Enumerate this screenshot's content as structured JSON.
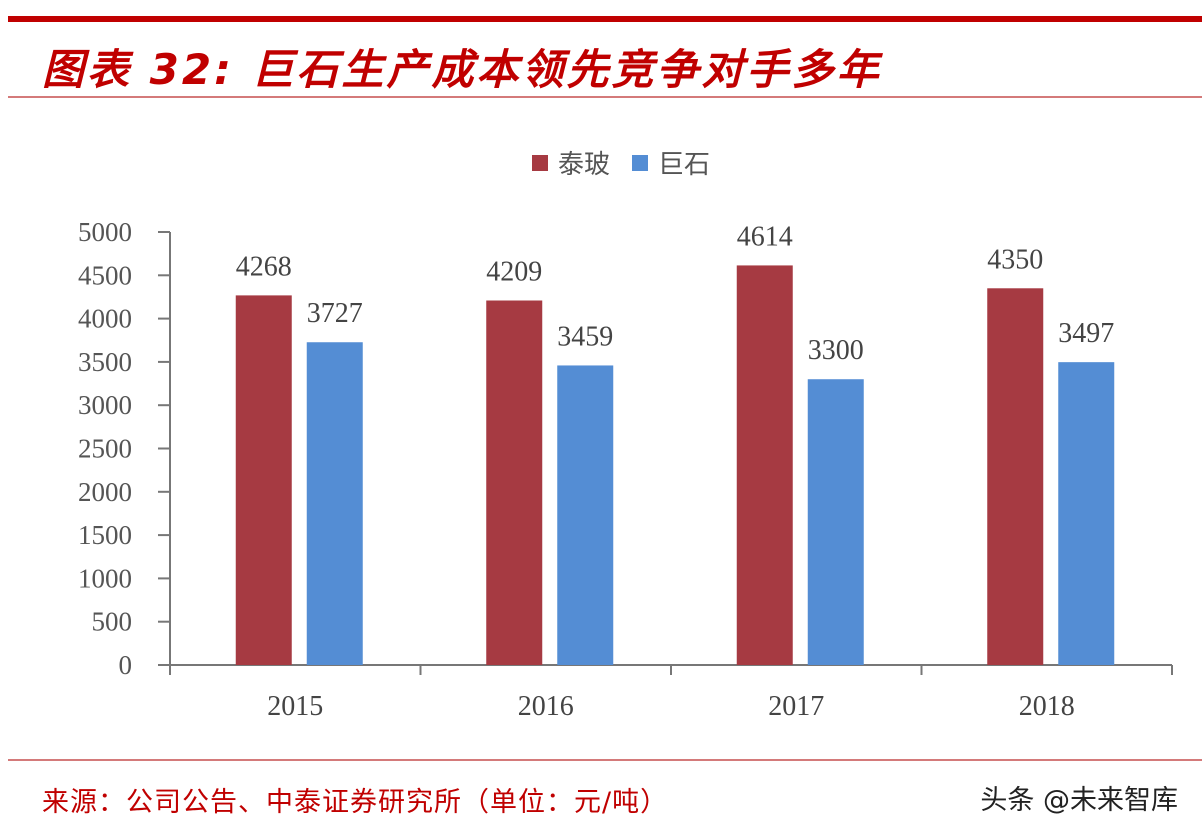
{
  "header": {
    "title": "图表 32:  巨石生产成本领先竞争对手多年"
  },
  "footer": {
    "source": "来源：公司公告、中泰证券研究所（单位：元/吨）",
    "watermark": "头条 @未来智库"
  },
  "colors": {
    "accent": "#c00000",
    "taibo": "#a63a42",
    "jushi": "#548dd4"
  },
  "chart_data": {
    "type": "bar",
    "title": "巨石生产成本领先竞争对手多年",
    "categories": [
      "2015",
      "2016",
      "2017",
      "2018"
    ],
    "series": [
      {
        "name": "泰玻",
        "color": "#a63a42",
        "values": [
          4268,
          4209,
          4614,
          4350
        ]
      },
      {
        "name": "巨石",
        "color": "#548dd4",
        "values": [
          3727,
          3459,
          3300,
          3497
        ]
      }
    ],
    "xlabel": "",
    "ylabel": "",
    "unit": "元/吨",
    "ylim": [
      0,
      5000
    ],
    "yticks": [
      0,
      500,
      1000,
      1500,
      2000,
      2500,
      3000,
      3500,
      4000,
      4500,
      5000
    ],
    "grid": false,
    "legend_position": "top",
    "data_labels": true
  }
}
